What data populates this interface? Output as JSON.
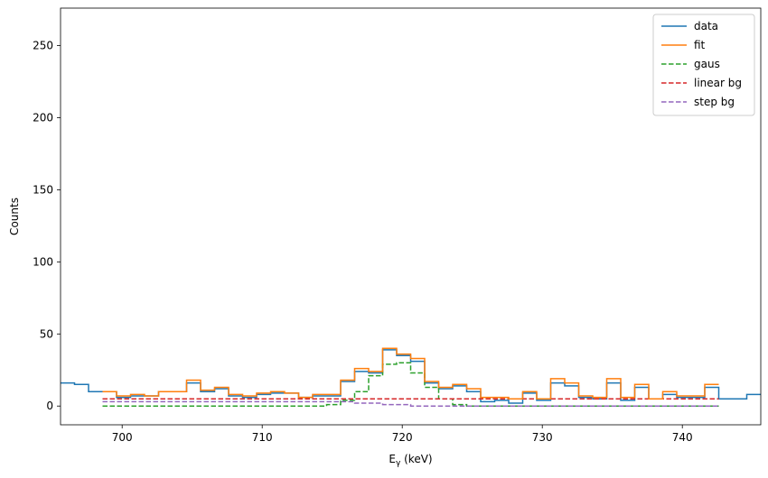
{
  "chart_data": {
    "type": "line",
    "title": "",
    "xlabel": "Eγ (keV)",
    "ylabel": "Counts",
    "xlim": [
      695.6,
      745.6
    ],
    "ylim": [
      -13,
      276
    ],
    "xticks": [
      700,
      710,
      720,
      730,
      740
    ],
    "yticks": [
      0,
      50,
      100,
      150,
      200,
      250
    ],
    "grid": false,
    "legend_position": "top-right",
    "bin_edges": [
      695.6,
      696.6,
      697.6,
      698.6,
      699.6,
      700.6,
      701.6,
      702.6,
      703.6,
      704.6,
      705.6,
      706.6,
      707.6,
      708.6,
      709.6,
      710.6,
      711.6,
      712.6,
      713.6,
      714.6,
      715.6,
      716.6,
      717.6,
      718.6,
      719.6,
      720.6,
      721.6,
      722.6,
      723.6,
      724.6,
      725.6,
      726.6,
      727.6,
      728.6,
      729.6,
      730.6,
      731.6,
      732.6,
      733.6,
      734.6,
      735.6,
      736.6,
      737.6,
      738.6,
      739.6,
      740.6,
      741.6,
      742.6,
      743.6,
      744.6,
      745.6
    ],
    "series": [
      {
        "name": "data",
        "color": "#1f77b4",
        "style": "solid",
        "values": [
          16,
          15,
          10,
          10,
          6,
          7,
          7,
          10,
          10,
          16,
          10,
          12,
          7,
          6,
          8,
          9,
          9,
          6,
          7,
          7,
          17,
          24,
          23,
          39,
          35,
          31,
          16,
          12,
          14,
          10,
          3,
          4,
          2,
          9,
          4,
          16,
          14,
          6,
          5,
          16,
          4,
          13,
          5,
          8,
          6,
          6,
          13,
          5,
          5,
          8
        ]
      },
      {
        "name": "fit",
        "color": "#ff7f0e",
        "style": "solid",
        "x_range": [
          698.6,
          742.6
        ],
        "values": [
          10,
          7,
          8,
          7,
          10,
          10,
          18,
          11,
          13,
          8,
          7,
          9,
          10,
          9,
          6,
          8,
          8,
          18,
          26,
          24,
          40,
          36,
          33,
          17,
          13,
          15,
          12,
          6,
          6,
          5,
          10,
          5,
          19,
          16,
          7,
          6,
          19,
          6,
          15,
          5,
          10,
          7,
          7,
          15
        ]
      },
      {
        "name": "gaus",
        "color": "#2ca02c",
        "style": "dashed",
        "x_range": [
          698.6,
          742.6
        ],
        "values": [
          0,
          0,
          0,
          0,
          0,
          0,
          0,
          0,
          0,
          0,
          0,
          0,
          0,
          0,
          0,
          0,
          1,
          4,
          10,
          21,
          29,
          30,
          23,
          13,
          5,
          1,
          0,
          0,
          0,
          0,
          0,
          0,
          0,
          0,
          0,
          0,
          0,
          0,
          0,
          0,
          0,
          0,
          0,
          0
        ]
      },
      {
        "name": "linear bg",
        "color": "#d62728",
        "style": "dashed",
        "x_range": [
          698.6,
          742.6
        ],
        "values": [
          5,
          5,
          5,
          5,
          5,
          5,
          5,
          5,
          5,
          5,
          5,
          5,
          5,
          5,
          5,
          5,
          5,
          5,
          5,
          5,
          5,
          5,
          5,
          5,
          5,
          5,
          5,
          5,
          5,
          5,
          5,
          5,
          5,
          5,
          5,
          5,
          5,
          5,
          5,
          5,
          5,
          5,
          5,
          5
        ]
      },
      {
        "name": "step bg",
        "color": "#9467bd",
        "style": "dashed",
        "x_range": [
          698.6,
          742.6
        ],
        "values": [
          3,
          3,
          3,
          3,
          3,
          3,
          3,
          3,
          3,
          3,
          3,
          3,
          3,
          3,
          3,
          3,
          3,
          3,
          2,
          2,
          1,
          1,
          0,
          0,
          0,
          0,
          0,
          0,
          0,
          0,
          0,
          0,
          0,
          0,
          0,
          0,
          0,
          0,
          0,
          0,
          0,
          0,
          0,
          0
        ]
      }
    ]
  }
}
